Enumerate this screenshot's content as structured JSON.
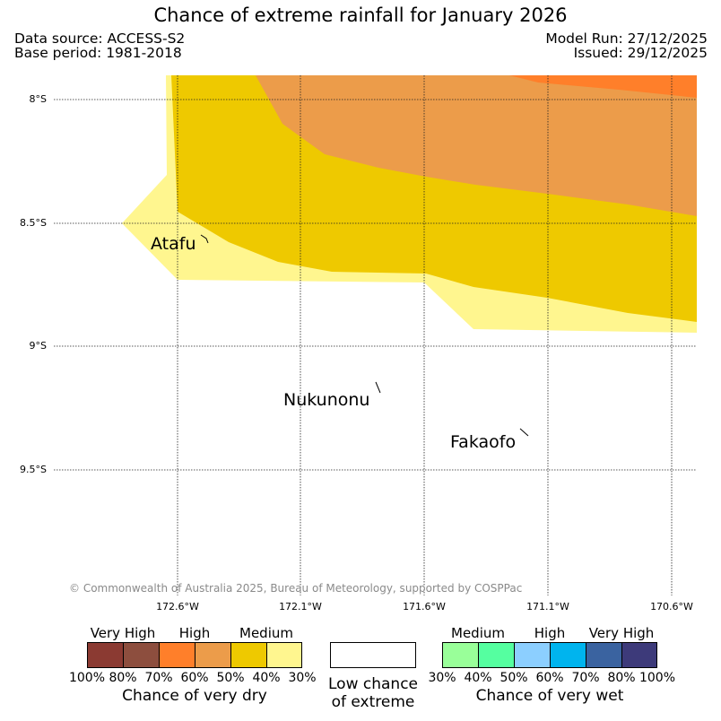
{
  "header": {
    "title": "Chance of extreme rainfall for January 2026",
    "data_source": "Data source: ACCESS-S2",
    "base_period": "Base period: 1981-2018",
    "model_run": "Model Run: 27/12/2025",
    "issued": "Issued: 29/12/2025"
  },
  "map": {
    "lat_labels": [
      "8°S",
      "8.5°S",
      "9°S",
      "9.5°S"
    ],
    "lon_labels": [
      "172.6°W",
      "172.1°W",
      "171.6°W",
      "171.1°W",
      "170.6°W"
    ],
    "places": [
      "Atafu",
      "Nukunonu",
      "Fakaofo"
    ],
    "copyright": "© Commonwealth of Australia 2025, Bureau of Meteorology, supported by COSPPac"
  },
  "legend": {
    "dry": {
      "headings": [
        "Very High",
        "High",
        "Medium"
      ],
      "colors": [
        "#8b3a32",
        "#8d4e3e",
        "#ff7f2a",
        "#ec9c4a",
        "#eec900",
        "#fff68f"
      ],
      "ticks": [
        "100%",
        "80%",
        "70%",
        "60%",
        "50%",
        "40%",
        "30%"
      ],
      "caption": "Chance of very dry"
    },
    "low": {
      "color": "#ffffff",
      "caption_line1": "Low chance",
      "caption_line2": "of extreme"
    },
    "wet": {
      "headings": [
        "Medium",
        "High",
        "Very High"
      ],
      "colors": [
        "#99ff99",
        "#55ffa0",
        "#8ccfff",
        "#00b4ee",
        "#3a63a0",
        "#3d3a7a"
      ],
      "ticks": [
        "30%",
        "40%",
        "50%",
        "60%",
        "70%",
        "80%",
        "100%"
      ],
      "caption": "Chance of very wet"
    }
  }
}
